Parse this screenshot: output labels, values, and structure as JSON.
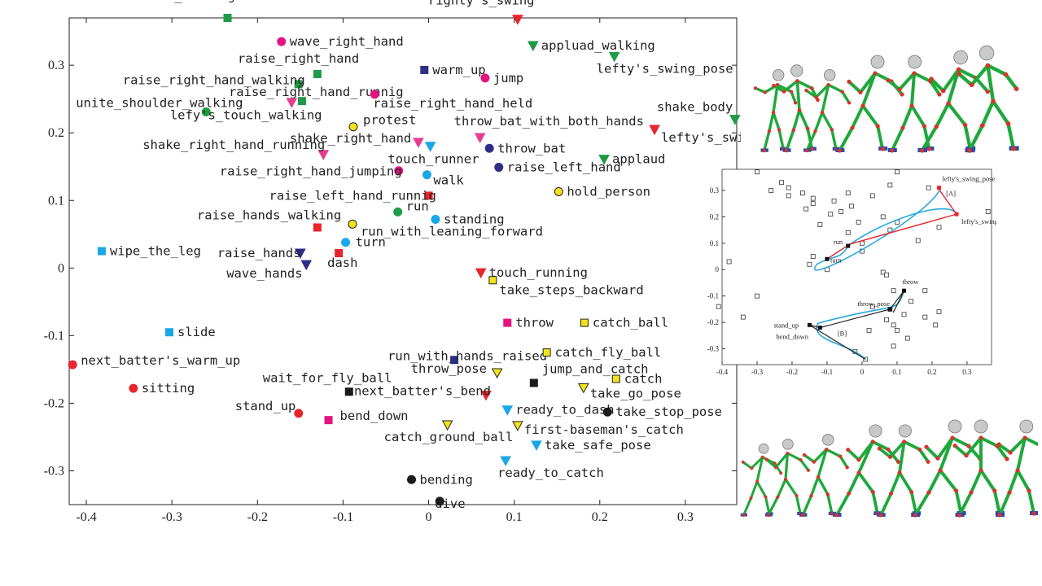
{
  "colors": {
    "red": "#e8242c",
    "green": "#1f9a46",
    "magenta": "#e2157f",
    "cyan": "#1aa7e6",
    "navy": "#2d2f86",
    "yellow": "#f2e41a",
    "black": "#1a1a1a",
    "pink": "#e83c8f",
    "skeleton": "#1ea83c",
    "joint": "#d8332b",
    "foot": "#2a4bb0"
  },
  "chart_data": [
    {
      "type": "scatter",
      "xlim": [
        -0.42,
        0.36
      ],
      "ylim": [
        -0.35,
        0.37
      ],
      "xticks": [
        -0.4,
        -0.3,
        -0.2,
        -0.1,
        0,
        0.1,
        0.2,
        0.3
      ],
      "xtick_labels": [
        "-0.4",
        "-0.3",
        "-0.2",
        "-0.1",
        "0",
        "0.1",
        "0.2",
        "0.3"
      ],
      "yticks": [
        0.3,
        0.2,
        0.1,
        0,
        -0.1,
        -0.2,
        -0.3
      ],
      "ytick_labels": [
        "0.3",
        "0.2",
        "0.1",
        "0",
        "-0.1",
        "-0.2",
        "-0.3"
      ],
      "points": [
        {
          "label": "touch_walking",
          "x": -0.235,
          "y": 0.37,
          "marker": "square",
          "color": "green"
        },
        {
          "label": "wave_right_hand",
          "x": -0.172,
          "y": 0.335,
          "marker": "circle",
          "color": "magenta"
        },
        {
          "label": "righty's_swing",
          "x": 0.104,
          "y": 0.368,
          "marker": "triangle-down",
          "color": "red"
        },
        {
          "label": "appluad_walking",
          "x": 0.122,
          "y": 0.329,
          "marker": "triangle-down",
          "color": "green"
        },
        {
          "label": "raise_right_hand",
          "x": -0.13,
          "y": 0.287,
          "marker": "square",
          "color": "green"
        },
        {
          "label": "warm_up",
          "x": -0.005,
          "y": 0.293,
          "marker": "square",
          "color": "navy"
        },
        {
          "label": "jump",
          "x": 0.066,
          "y": 0.281,
          "marker": "circle",
          "color": "magenta"
        },
        {
          "label": "lefty's_swing_pose",
          "x": 0.217,
          "y": 0.313,
          "marker": "triangle-down",
          "color": "green"
        },
        {
          "label": "raise_right_hand_walking",
          "x": -0.152,
          "y": 0.272,
          "marker": "square",
          "color": "green"
        },
        {
          "label": "raise_right_hand_runnig",
          "x": -0.148,
          "y": 0.247,
          "marker": "square",
          "color": "green"
        },
        {
          "label": "unite_shoulder_walking",
          "x": -0.26,
          "y": 0.231,
          "marker": "circle",
          "color": "green"
        },
        {
          "label": "raise_right_hand_held",
          "x": -0.063,
          "y": 0.257,
          "marker": "circle",
          "color": "magenta"
        },
        {
          "label": "",
          "x": -0.16,
          "y": 0.245,
          "marker": "triangle-down",
          "color": "pink"
        },
        {
          "label": "lefy's_touch_walking",
          "x": -0.15,
          "y": 0.22,
          "marker": "none",
          "color": "black"
        },
        {
          "label": "protest",
          "x": -0.088,
          "y": 0.209,
          "marker": "circle",
          "color": "yellow"
        },
        {
          "label": "shake_body",
          "x": 0.358,
          "y": 0.22,
          "marker": "triangle-down",
          "color": "green"
        },
        {
          "label": "throw_bat_with_both_hands",
          "x": 0.06,
          "y": 0.193,
          "marker": "triangle-down",
          "color": "pink"
        },
        {
          "label": "lefty's_swing",
          "x": 0.264,
          "y": 0.205,
          "marker": "triangle-down",
          "color": "red"
        },
        {
          "label": "shake_right_hand_running",
          "x": -0.123,
          "y": 0.168,
          "marker": "triangle-down",
          "color": "pink"
        },
        {
          "label": "shake_right_hand",
          "x": -0.012,
          "y": 0.186,
          "marker": "triangle-down",
          "color": "pink"
        },
        {
          "label": "",
          "x": 0.002,
          "y": 0.18,
          "marker": "triangle-down",
          "color": "cyan"
        },
        {
          "label": "throw_bat",
          "x": 0.071,
          "y": 0.177,
          "marker": "circle",
          "color": "navy"
        },
        {
          "label": "applaud",
          "x": 0.205,
          "y": 0.161,
          "marker": "triangle-down",
          "color": "green"
        },
        {
          "label": "touch_runner",
          "x": -0.002,
          "y": 0.138,
          "marker": "circle",
          "color": "cyan"
        },
        {
          "label": "raise_right_hand_jumping",
          "x": -0.035,
          "y": 0.144,
          "marker": "circle",
          "color": "magenta"
        },
        {
          "label": "raise_left_hand",
          "x": 0.082,
          "y": 0.149,
          "marker": "circle",
          "color": "navy"
        },
        {
          "label": "walk",
          "x": -0.002,
          "y": 0.12,
          "marker": "none",
          "color": "black"
        },
        {
          "label": "raise_left_hand_runnig",
          "x": 0.0,
          "y": 0.107,
          "marker": "square",
          "color": "red"
        },
        {
          "label": "hold_person",
          "x": 0.152,
          "y": 0.113,
          "marker": "circle",
          "color": "yellow"
        },
        {
          "label": "run",
          "x": -0.036,
          "y": 0.083,
          "marker": "circle",
          "color": "green"
        },
        {
          "label": "standing",
          "x": 0.008,
          "y": 0.072,
          "marker": "circle",
          "color": "cyan"
        },
        {
          "label": "raise_hands_walking",
          "x": -0.13,
          "y": 0.06,
          "marker": "square",
          "color": "red"
        },
        {
          "label": "run_with_leaning_forward",
          "x": -0.089,
          "y": 0.065,
          "marker": "circle",
          "color": "yellow"
        },
        {
          "label": "wipe_the_leg",
          "x": -0.382,
          "y": 0.025,
          "marker": "square",
          "color": "cyan"
        },
        {
          "label": "turn",
          "x": -0.097,
          "y": 0.038,
          "marker": "circle",
          "color": "cyan"
        },
        {
          "label": "raise_hands",
          "x": -0.15,
          "y": 0.022,
          "marker": "triangle-down",
          "color": "navy"
        },
        {
          "label": "dash",
          "x": -0.105,
          "y": 0.022,
          "marker": "square",
          "color": "red"
        },
        {
          "label": "wave_hands",
          "x": -0.143,
          "y": 0.005,
          "marker": "triangle-down",
          "color": "navy"
        },
        {
          "label": "touch_running",
          "x": 0.061,
          "y": -0.007,
          "marker": "triangle-down",
          "color": "red"
        },
        {
          "label": "take_steps_backward",
          "x": 0.075,
          "y": -0.018,
          "marker": "square",
          "color": "yellow"
        },
        {
          "label": "throw",
          "x": 0.092,
          "y": -0.081,
          "marker": "square",
          "color": "magenta"
        },
        {
          "label": "catch_ball",
          "x": 0.182,
          "y": -0.081,
          "marker": "square",
          "color": "yellow"
        },
        {
          "label": "slide",
          "x": -0.303,
          "y": -0.095,
          "marker": "square",
          "color": "cyan"
        },
        {
          "label": "run_with_hands_raised",
          "x": 0.03,
          "y": -0.136,
          "marker": "square",
          "color": "navy"
        },
        {
          "label": "catch_fly_ball",
          "x": 0.138,
          "y": -0.125,
          "marker": "square",
          "color": "yellow"
        },
        {
          "label": "next_batter's_warm_up",
          "x": -0.416,
          "y": -0.143,
          "marker": "circle",
          "color": "red"
        },
        {
          "label": "throw_pose",
          "x": 0.08,
          "y": -0.155,
          "marker": "triangle-down",
          "color": "yellow"
        },
        {
          "label": "jump_and_catch",
          "x": 0.123,
          "y": -0.17,
          "marker": "square",
          "color": "black"
        },
        {
          "label": "catch",
          "x": 0.219,
          "y": -0.164,
          "marker": "square",
          "color": "yellow"
        },
        {
          "label": "sitting",
          "x": -0.345,
          "y": -0.178,
          "marker": "circle",
          "color": "red"
        },
        {
          "label": "wait_for_fly_ball",
          "x": -0.093,
          "y": -0.183,
          "marker": "square",
          "color": "black"
        },
        {
          "label": "next_batter's_bend",
          "x": 0.067,
          "y": -0.188,
          "marker": "triangle-down",
          "color": "red"
        },
        {
          "label": "take_go_pose",
          "x": 0.181,
          "y": -0.177,
          "marker": "triangle-down",
          "color": "yellow"
        },
        {
          "label": "stand_up",
          "x": -0.152,
          "y": -0.215,
          "marker": "circle",
          "color": "red"
        },
        {
          "label": "ready_to_dash",
          "x": 0.092,
          "y": -0.21,
          "marker": "triangle-down",
          "color": "cyan"
        },
        {
          "label": "take_stop_pose",
          "x": 0.209,
          "y": -0.213,
          "marker": "circle",
          "color": "black"
        },
        {
          "label": "bend_down",
          "x": -0.117,
          "y": -0.225,
          "marker": "square",
          "color": "magenta"
        },
        {
          "label": "catch_ground_ball",
          "x": 0.022,
          "y": -0.232,
          "marker": "triangle-down",
          "color": "yellow"
        },
        {
          "label": "first-baseman's_catch",
          "x": 0.104,
          "y": -0.233,
          "marker": "triangle-down",
          "color": "yellow"
        },
        {
          "label": "take_safe_pose",
          "x": 0.126,
          "y": -0.262,
          "marker": "triangle-down",
          "color": "cyan"
        },
        {
          "label": "ready_to_catch",
          "x": 0.09,
          "y": -0.285,
          "marker": "triangle-down",
          "color": "cyan"
        },
        {
          "label": "bending",
          "x": -0.02,
          "y": -0.313,
          "marker": "circle",
          "color": "black"
        },
        {
          "label": "dive",
          "x": 0.013,
          "y": -0.345,
          "marker": "circle",
          "color": "black"
        }
      ]
    },
    {
      "type": "scatter",
      "xlim": [
        -0.4,
        0.37
      ],
      "ylim": [
        -0.36,
        0.38
      ],
      "xticks": [
        -0.4,
        -0.3,
        -0.2,
        -0.1,
        0,
        0.1,
        0.2,
        0.3
      ],
      "xtick_labels": [
        "-0.4",
        "-0.3",
        "-0.2",
        "-0.1",
        "0",
        "0.1",
        "0.2",
        "0.3"
      ],
      "yticks": [
        0.3,
        0.2,
        0.1,
        0,
        -0.1,
        -0.2,
        -0.3
      ],
      "ytick_labels": [
        "0.3",
        "0.2",
        "0.1",
        "0",
        "-0.1",
        "-0.2",
        "-0.3"
      ],
      "points": [
        [
          -0.3,
          0.37
        ],
        [
          -0.23,
          0.33
        ],
        [
          -0.21,
          0.31
        ],
        [
          -0.26,
          0.3
        ],
        [
          -0.17,
          0.29
        ],
        [
          -0.21,
          0.28
        ],
        [
          -0.14,
          0.27
        ],
        [
          -0.04,
          0.29
        ],
        [
          0.03,
          0.28
        ],
        [
          0.08,
          0.32
        ],
        [
          0.1,
          0.37
        ],
        [
          0.19,
          0.31
        ],
        [
          -0.14,
          0.25
        ],
        [
          -0.08,
          0.26
        ],
        [
          -0.03,
          0.24
        ],
        [
          -0.06,
          0.22
        ],
        [
          -0.09,
          0.21
        ],
        [
          -0.16,
          0.23
        ],
        [
          0.06,
          0.2
        ],
        [
          0.1,
          0.18
        ],
        [
          0.36,
          0.22
        ],
        [
          0.22,
          0.16
        ],
        [
          -0.12,
          0.17
        ],
        [
          -0.01,
          0.18
        ],
        [
          0.08,
          0.15
        ],
        [
          -0.04,
          0.14
        ],
        [
          0.16,
          0.11
        ],
        [
          0.0,
          0.1
        ],
        [
          0.0,
          0.07
        ],
        [
          -0.14,
          0.05
        ],
        [
          -0.38,
          0.03
        ],
        [
          -0.15,
          0.02
        ],
        [
          -0.1,
          0.0
        ],
        [
          0.06,
          -0.01
        ],
        [
          0.07,
          -0.02
        ],
        [
          0.09,
          -0.08
        ],
        [
          0.18,
          -0.08
        ],
        [
          -0.3,
          -0.1
        ],
        [
          0.03,
          -0.14
        ],
        [
          0.14,
          -0.12
        ],
        [
          -0.41,
          -0.14
        ],
        [
          0.08,
          -0.15
        ],
        [
          0.12,
          -0.17
        ],
        [
          0.22,
          -0.16
        ],
        [
          -0.34,
          -0.18
        ],
        [
          0.07,
          -0.19
        ],
        [
          0.18,
          -0.18
        ],
        [
          0.09,
          -0.21
        ],
        [
          0.21,
          -0.21
        ],
        [
          0.02,
          -0.23
        ],
        [
          0.1,
          -0.23
        ],
        [
          0.13,
          -0.26
        ],
        [
          0.09,
          -0.29
        ],
        [
          -0.02,
          -0.31
        ],
        [
          0.01,
          -0.34
        ]
      ],
      "highlighted": [
        {
          "label": "lefty's_swing_pose",
          "x": 0.22,
          "y": 0.31
        },
        {
          "label": "lefty's_swing",
          "x": 0.27,
          "y": 0.21
        },
        {
          "label": "run",
          "x": -0.04,
          "y": 0.09
        },
        {
          "label": "turn",
          "x": -0.1,
          "y": 0.04
        },
        {
          "label": "throw",
          "x": 0.12,
          "y": -0.08
        },
        {
          "label": "throw_pose",
          "x": 0.08,
          "y": -0.15
        },
        {
          "label": "stand_up",
          "x": -0.15,
          "y": -0.21
        },
        {
          "label": "bend_down",
          "x": -0.12,
          "y": -0.22
        }
      ],
      "annotations": [
        "[A]",
        "[B]"
      ]
    }
  ]
}
